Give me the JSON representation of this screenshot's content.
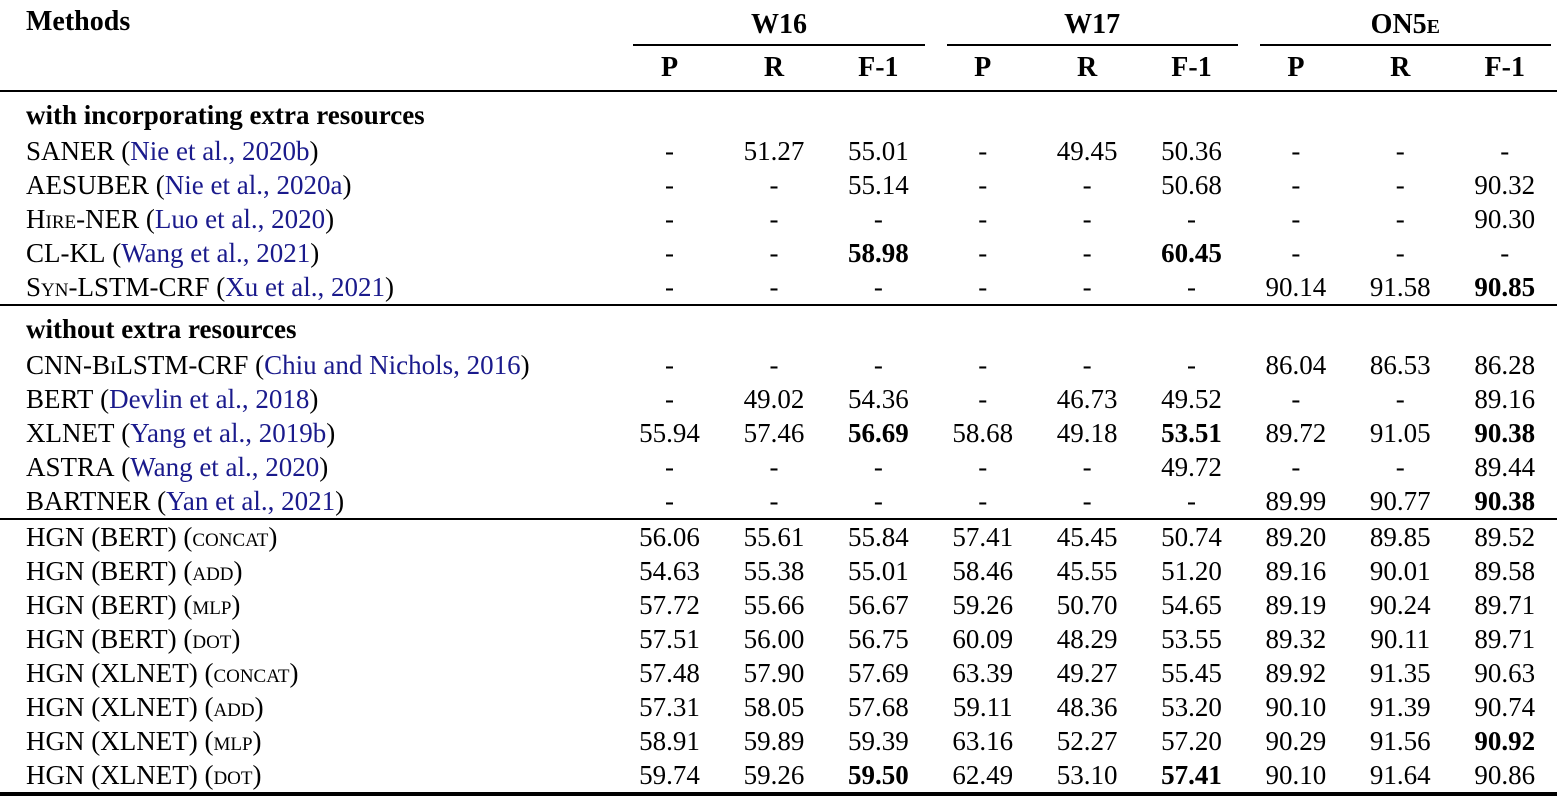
{
  "colors": {
    "text": "#000000",
    "citation": "#1a1a8c",
    "background": "#ffffff",
    "rule": "#000000"
  },
  "table": {
    "methods_header": "Methods",
    "column_groups": [
      {
        "label": "W16"
      },
      {
        "label": "W17"
      },
      {
        "label": "ON5e"
      }
    ],
    "metric_headers": [
      "P",
      "R",
      "F-1"
    ],
    "empty_value": "-",
    "sections": [
      {
        "header": "with incorporating extra resources",
        "rows": [
          {
            "name": "SANER",
            "cite": "Nie et al., 2020b",
            "values": [
              "-",
              "51.27",
              "55.01",
              "-",
              "49.45",
              "50.36",
              "-",
              "-",
              "-"
            ],
            "bold": []
          },
          {
            "name": "AESUBER",
            "cite": "Nie et al., 2020a",
            "values": [
              "-",
              "-",
              "55.14",
              "-",
              "-",
              "50.68",
              "-",
              "-",
              "90.32"
            ],
            "bold": []
          },
          {
            "name": "Hire-NER",
            "cite": "Luo et al., 2020",
            "values": [
              "-",
              "-",
              "-",
              "-",
              "-",
              "-",
              "-",
              "-",
              "90.30"
            ],
            "bold": []
          },
          {
            "name": "CL-KL",
            "cite": "Wang et al., 2021",
            "values": [
              "-",
              "-",
              "58.98",
              "-",
              "-",
              "60.45",
              "-",
              "-",
              "-"
            ],
            "bold": [
              2,
              5
            ]
          },
          {
            "name": "Syn-LSTM-CRF",
            "cite": "Xu et al., 2021",
            "values": [
              "-",
              "-",
              "-",
              "-",
              "-",
              "-",
              "90.14",
              "91.58",
              "90.85"
            ],
            "bold": [
              8
            ]
          }
        ]
      },
      {
        "header": "without extra resources",
        "rows": [
          {
            "name": "CNN-BiLSTM-CRF",
            "cite": "Chiu and Nichols, 2016",
            "values": [
              "-",
              "-",
              "-",
              "-",
              "-",
              "-",
              "86.04",
              "86.53",
              "86.28"
            ],
            "bold": []
          },
          {
            "name": "BERT",
            "cite": "Devlin et al., 2018",
            "values": [
              "-",
              "49.02",
              "54.36",
              "-",
              "46.73",
              "49.52",
              "-",
              "-",
              "89.16"
            ],
            "bold": []
          },
          {
            "name": "XLNET",
            "cite": "Yang et al., 2019b",
            "values": [
              "55.94",
              "57.46",
              "56.69",
              "58.68",
              "49.18",
              "53.51",
              "89.72",
              "91.05",
              "90.38"
            ],
            "bold": [
              2,
              5,
              8
            ]
          },
          {
            "name": "ASTRA",
            "cite": "Wang et al., 2020",
            "values": [
              "-",
              "-",
              "-",
              "-",
              "-",
              "49.72",
              "-",
              "-",
              "89.44"
            ],
            "bold": []
          },
          {
            "name": "BARTNER",
            "cite": "Yan et al., 2021",
            "values": [
              "-",
              "-",
              "-",
              "-",
              "-",
              "-",
              "89.99",
              "90.77",
              "90.38"
            ],
            "bold": [
              8
            ]
          }
        ]
      },
      {
        "header": null,
        "rows": [
          {
            "name": "HGN (BERT) (concat)",
            "cite": null,
            "values": [
              "56.06",
              "55.61",
              "55.84",
              "57.41",
              "45.45",
              "50.74",
              "89.20",
              "89.85",
              "89.52"
            ],
            "bold": []
          },
          {
            "name": "HGN (BERT) (add)",
            "cite": null,
            "values": [
              "54.63",
              "55.38",
              "55.01",
              "58.46",
              "45.55",
              "51.20",
              "89.16",
              "90.01",
              "89.58"
            ],
            "bold": []
          },
          {
            "name": "HGN (BERT) (mlp)",
            "cite": null,
            "values": [
              "57.72",
              "55.66",
              "56.67",
              "59.26",
              "50.70",
              "54.65",
              "89.19",
              "90.24",
              "89.71"
            ],
            "bold": []
          },
          {
            "name": "HGN (BERT) (dot)",
            "cite": null,
            "values": [
              "57.51",
              "56.00",
              "56.75",
              "60.09",
              "48.29",
              "53.55",
              "89.32",
              "90.11",
              "89.71"
            ],
            "bold": []
          },
          {
            "name": "HGN (XLNET) (concat)",
            "cite": null,
            "values": [
              "57.48",
              "57.90",
              "57.69",
              "63.39",
              "49.27",
              "55.45",
              "89.92",
              "91.35",
              "90.63"
            ],
            "bold": []
          },
          {
            "name": "HGN (XLNET) (add)",
            "cite": null,
            "values": [
              "57.31",
              "58.05",
              "57.68",
              "59.11",
              "48.36",
              "53.20",
              "90.10",
              "91.39",
              "90.74"
            ],
            "bold": []
          },
          {
            "name": "HGN (XLNET) (mlp)",
            "cite": null,
            "values": [
              "58.91",
              "59.89",
              "59.39",
              "63.16",
              "52.27",
              "57.20",
              "90.29",
              "91.56",
              "90.92"
            ],
            "bold": [
              8
            ]
          },
          {
            "name": "HGN (XLNET) (dot)",
            "cite": null,
            "values": [
              "59.74",
              "59.26",
              "59.50",
              "62.49",
              "53.10",
              "57.41",
              "90.10",
              "91.64",
              "90.86"
            ],
            "bold": [
              2,
              5
            ]
          }
        ]
      }
    ]
  }
}
